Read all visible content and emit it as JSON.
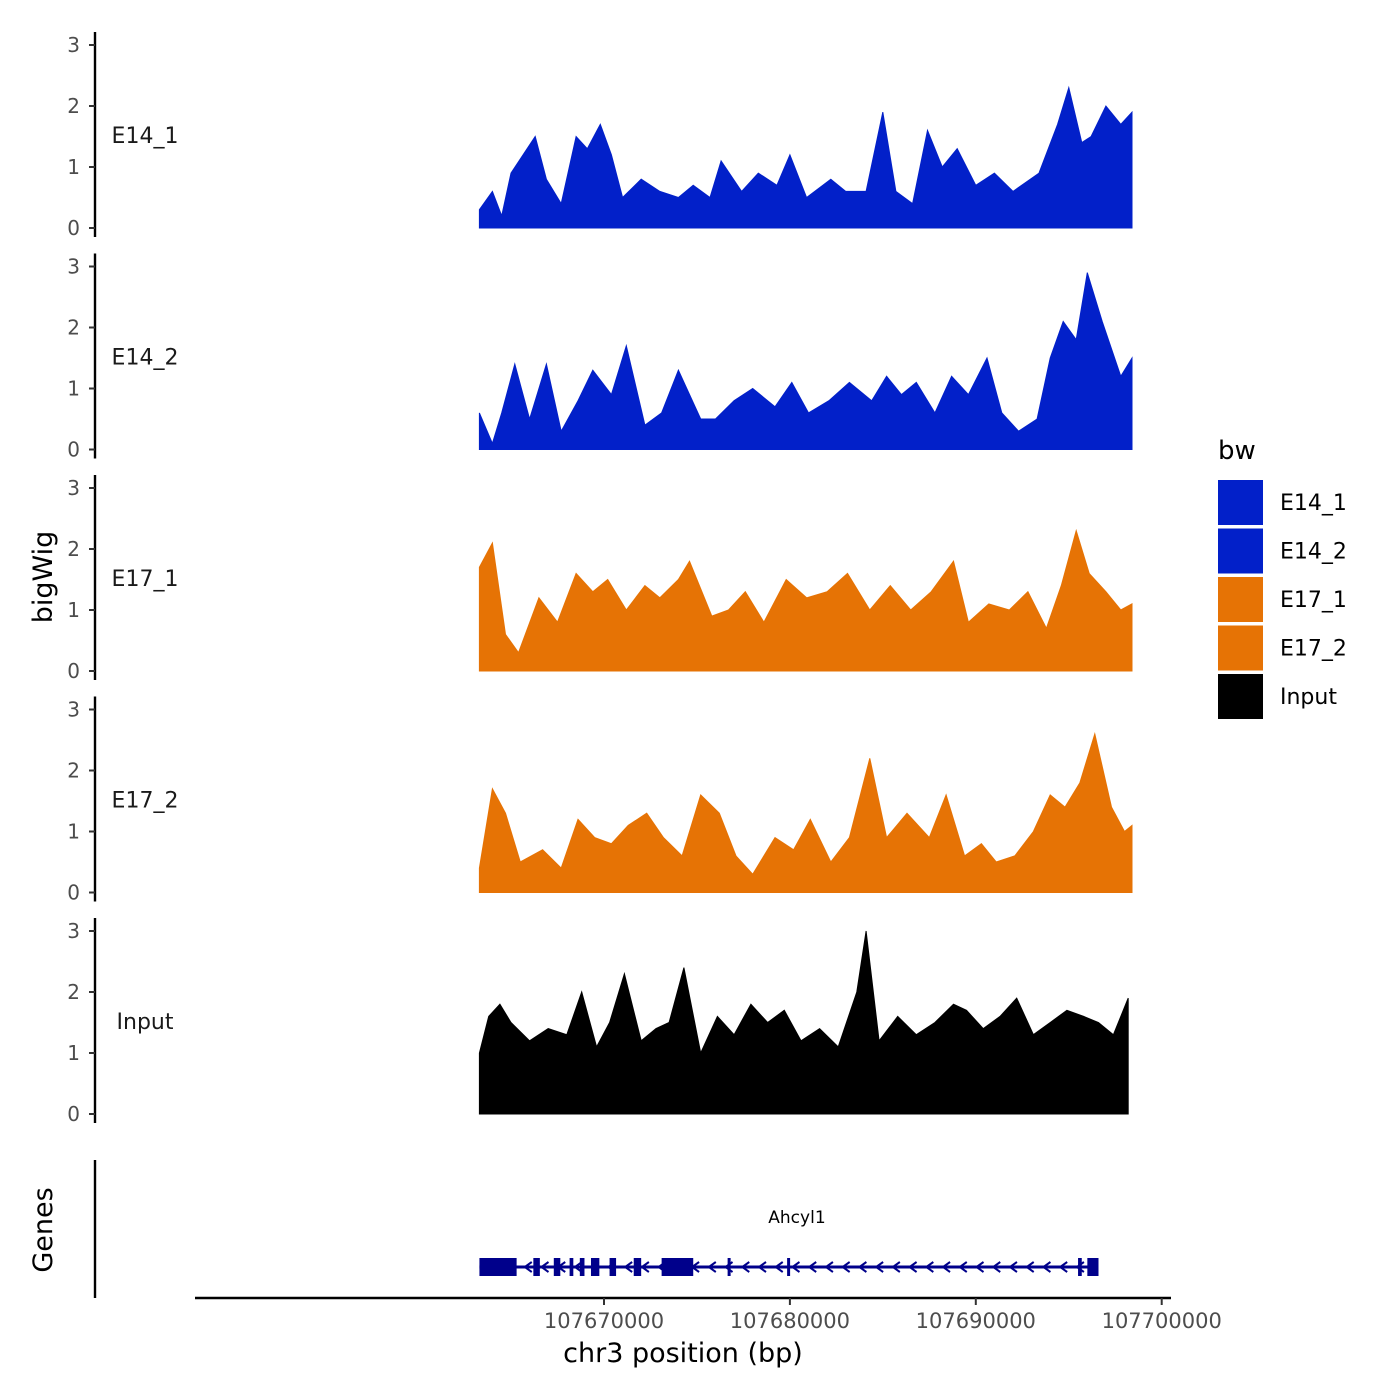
{
  "chart_data": {
    "type": "area",
    "title": "",
    "ylabel": "bigWig",
    "genes_label": "Genes",
    "xlabel": "chr3 position (bp)",
    "xlim": [
      107648000,
      107700500
    ],
    "x_ticks": [
      107670000,
      107680000,
      107690000,
      107700000
    ],
    "x_tick_labels": [
      "107670000",
      "107680000",
      "107690000",
      "107700000"
    ],
    "data_range": [
      107663300,
      107698400
    ],
    "ylim": [
      0,
      3
    ],
    "y_ticks": [
      0,
      1,
      2,
      3
    ],
    "y_tick_labels": [
      "0",
      "1",
      "2",
      "3"
    ],
    "legend": {
      "title": "bw",
      "position": "right",
      "entries": [
        {
          "label": "E14_1",
          "color": "#0220C9"
        },
        {
          "label": "E14_2",
          "color": "#0220C9"
        },
        {
          "label": "E17_1",
          "color": "#E67305"
        },
        {
          "label": "E17_2",
          "color": "#E67305"
        },
        {
          "label": "Input",
          "color": "#000000"
        }
      ]
    },
    "series": [
      {
        "name": "E14_1",
        "color": "#0220C9",
        "x": [
          107663300,
          107664000,
          107664500,
          107665000,
          107666300,
          107666900,
          107667700,
          107668500,
          107669100,
          107669800,
          107670400,
          107671000,
          107672000,
          107673000,
          107674000,
          107674800,
          107675700,
          107676300,
          107677400,
          107678300,
          107679300,
          107680000,
          107680900,
          107682200,
          107683000,
          107684100,
          107685000,
          107685700,
          107686600,
          107687400,
          107688200,
          107689000,
          107690000,
          107691000,
          107692000,
          107693400,
          107694400,
          107695000,
          107695700,
          107696200,
          107697000,
          107697800,
          107698400
        ],
        "values": [
          0.3,
          0.6,
          0.2,
          0.9,
          1.5,
          0.8,
          0.4,
          1.5,
          1.3,
          1.7,
          1.2,
          0.5,
          0.8,
          0.6,
          0.5,
          0.7,
          0.5,
          1.1,
          0.6,
          0.9,
          0.7,
          1.2,
          0.5,
          0.8,
          0.6,
          0.6,
          1.9,
          0.6,
          0.4,
          1.6,
          1.0,
          1.3,
          0.7,
          0.9,
          0.6,
          0.9,
          1.7,
          2.3,
          1.4,
          1.5,
          2.0,
          1.7,
          1.9
        ]
      },
      {
        "name": "E14_2",
        "color": "#0220C9",
        "x": [
          107663300,
          107664000,
          107664500,
          107665200,
          107666000,
          107666900,
          107667700,
          107668600,
          107669400,
          107670400,
          107671200,
          107672200,
          107673100,
          107674000,
          107675200,
          107676000,
          107677000,
          107678000,
          107679200,
          107680100,
          107681000,
          107682100,
          107683200,
          107684400,
          107685200,
          107686000,
          107686800,
          107687800,
          107688700,
          107689600,
          107690600,
          107691400,
          107692300,
          107693300,
          107694000,
          107694700,
          107695400,
          107696000,
          107696800,
          107697800,
          107698400
        ],
        "values": [
          0.6,
          0.1,
          0.6,
          1.4,
          0.5,
          1.4,
          0.3,
          0.8,
          1.3,
          0.9,
          1.7,
          0.4,
          0.6,
          1.3,
          0.5,
          0.5,
          0.8,
          1.0,
          0.7,
          1.1,
          0.6,
          0.8,
          1.1,
          0.8,
          1.2,
          0.9,
          1.1,
          0.6,
          1.2,
          0.9,
          1.5,
          0.6,
          0.3,
          0.5,
          1.5,
          2.1,
          1.8,
          2.9,
          2.1,
          1.2,
          1.5
        ]
      },
      {
        "name": "E17_1",
        "color": "#E67305",
        "x": [
          107663300,
          107664000,
          107664700,
          107665400,
          107666500,
          107667500,
          107668500,
          107669400,
          107670200,
          107671200,
          107672200,
          107673000,
          107674000,
          107674600,
          107675800,
          107676700,
          107677600,
          107678600,
          107679800,
          107680900,
          107682000,
          107683100,
          107684300,
          107685400,
          107686500,
          107687600,
          107688800,
          107689600,
          107690700,
          107691800,
          107692800,
          107693800,
          107694600,
          107695400,
          107696100,
          107697000,
          107697800,
          107698400
        ],
        "values": [
          1.7,
          2.1,
          0.6,
          0.3,
          1.2,
          0.8,
          1.6,
          1.3,
          1.5,
          1.0,
          1.4,
          1.2,
          1.5,
          1.8,
          0.9,
          1.0,
          1.3,
          0.8,
          1.5,
          1.2,
          1.3,
          1.6,
          1.0,
          1.4,
          1.0,
          1.3,
          1.8,
          0.8,
          1.1,
          1.0,
          1.3,
          0.7,
          1.4,
          2.3,
          1.6,
          1.3,
          1.0,
          1.1
        ]
      },
      {
        "name": "E17_2",
        "color": "#E67305",
        "x": [
          107663300,
          107664000,
          107664700,
          107665500,
          107666700,
          107667700,
          107668600,
          107669500,
          107670400,
          107671300,
          107672300,
          107673200,
          107674200,
          107675200,
          107676200,
          107677100,
          107678000,
          107679200,
          107680200,
          107681100,
          107682200,
          107683200,
          107684300,
          107685200,
          107686300,
          107687500,
          107688400,
          107689400,
          107690300,
          107691100,
          107692100,
          107693100,
          107694000,
          107694800,
          107695600,
          107696400,
          107697300,
          107698000,
          107698400
        ],
        "values": [
          0.4,
          1.7,
          1.3,
          0.5,
          0.7,
          0.4,
          1.2,
          0.9,
          0.8,
          1.1,
          1.3,
          0.9,
          0.6,
          1.6,
          1.3,
          0.6,
          0.3,
          0.9,
          0.7,
          1.2,
          0.5,
          0.9,
          2.2,
          0.9,
          1.3,
          0.9,
          1.6,
          0.6,
          0.8,
          0.5,
          0.6,
          1.0,
          1.6,
          1.4,
          1.8,
          2.6,
          1.4,
          1.0,
          1.1
        ]
      },
      {
        "name": "Input",
        "color": "#000000",
        "x": [
          107663300,
          107663800,
          107664400,
          107665000,
          107666000,
          107667000,
          107668000,
          107668800,
          107669600,
          107670300,
          107671100,
          107672000,
          107672800,
          107673500,
          107674300,
          107675200,
          107676100,
          107677000,
          107677900,
          107678800,
          107679700,
          107680600,
          107681600,
          107682600,
          107683600,
          107684100,
          107684800,
          107685800,
          107686800,
          107687800,
          107688800,
          107689500,
          107690400,
          107691300,
          107692200,
          107693100,
          107694000,
          107694900,
          107695800,
          107696600,
          107697400,
          107698200
        ],
        "values": [
          1.0,
          1.6,
          1.8,
          1.5,
          1.2,
          1.4,
          1.3,
          2.0,
          1.1,
          1.5,
          2.3,
          1.2,
          1.4,
          1.5,
          2.4,
          1.0,
          1.6,
          1.3,
          1.8,
          1.5,
          1.7,
          1.2,
          1.4,
          1.1,
          2.0,
          3.0,
          1.2,
          1.6,
          1.3,
          1.5,
          1.8,
          1.7,
          1.4,
          1.6,
          1.9,
          1.3,
          1.5,
          1.7,
          1.6,
          1.5,
          1.3,
          1.9
        ]
      }
    ],
    "gene_track": {
      "gene_name": "Ahcyl1",
      "strand": "-",
      "color": "#00008B",
      "start": 107663300,
      "end": 107696600,
      "exons": [
        {
          "start": 107663300,
          "end": 107665300
        },
        {
          "start": 107666200,
          "end": 107666550
        },
        {
          "start": 107667300,
          "end": 107667650
        },
        {
          "start": 107668150,
          "end": 107668350
        },
        {
          "start": 107668700,
          "end": 107668950
        },
        {
          "start": 107669300,
          "end": 107669750
        },
        {
          "start": 107670300,
          "end": 107670650
        },
        {
          "start": 107671600,
          "end": 107672000
        },
        {
          "start": 107673100,
          "end": 107674800
        },
        {
          "start": 107676650,
          "end": 107676750
        },
        {
          "start": 107679850,
          "end": 107679950
        },
        {
          "start": 107695500,
          "end": 107695700
        },
        {
          "start": 107696000,
          "end": 107696600
        }
      ]
    }
  }
}
